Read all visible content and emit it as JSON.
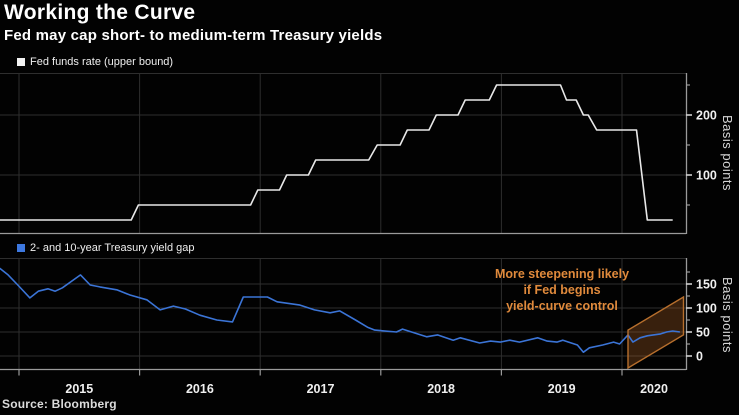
{
  "header": {
    "title": "Working the Curve",
    "subtitle": "Fed may cap short- to medium-term Treasury yields"
  },
  "source_label": "Source: Bloomberg",
  "colors": {
    "background": "#020202",
    "title_text": "#ffffff",
    "fed_line": "#e8e8e8",
    "gap_line": "#3b74d6",
    "legend_fed_swatch": "#f2f2f2",
    "legend_gap_swatch": "#3d78e0",
    "annotation_orange": "#e08a3c",
    "wedge_fill": "rgba(170,95,38,0.32)",
    "wedge_stroke": "#b76f2d",
    "grid": "#2e2e2e",
    "axis": "#9a9a9a",
    "tick_text": "#f0f0f0"
  },
  "chart_data": [
    {
      "type": "line",
      "line_style": "step",
      "title": "Fed funds rate (upper bound)",
      "ylabel": "Basis points",
      "x_unit": "year",
      "x_range": [
        2014.84,
        2020.53
      ],
      "x_ticks": [
        2015,
        2016,
        2017,
        2018,
        2019,
        2020
      ],
      "ylim": [
        0,
        270
      ],
      "yticks_labeled": [
        100,
        200
      ],
      "yticks_minor": [
        50,
        150,
        250
      ],
      "grid": "on",
      "legend_position": "top-left",
      "points": [
        [
          2014.84,
          25
        ],
        [
          2015.93,
          25
        ],
        [
          2015.99,
          50
        ],
        [
          2016.92,
          50
        ],
        [
          2016.98,
          75
        ],
        [
          2017.16,
          75
        ],
        [
          2017.22,
          100
        ],
        [
          2017.4,
          100
        ],
        [
          2017.46,
          125
        ],
        [
          2017.9,
          125
        ],
        [
          2017.97,
          150
        ],
        [
          2018.16,
          150
        ],
        [
          2018.22,
          175
        ],
        [
          2018.4,
          175
        ],
        [
          2018.46,
          200
        ],
        [
          2018.64,
          200
        ],
        [
          2018.7,
          225
        ],
        [
          2018.9,
          225
        ],
        [
          2018.96,
          250
        ],
        [
          2019.49,
          250
        ],
        [
          2019.54,
          225
        ],
        [
          2019.62,
          225
        ],
        [
          2019.68,
          200
        ],
        [
          2019.72,
          200
        ],
        [
          2019.79,
          175
        ],
        [
          2020.12,
          175
        ],
        [
          2020.21,
          25
        ],
        [
          2020.42,
          25
        ]
      ]
    },
    {
      "type": "line",
      "title": "2- and 10-year Treasury yield gap",
      "ylabel": "Basis points",
      "x_unit": "year",
      "x_range": [
        2014.84,
        2020.53
      ],
      "x_ticks": [
        2015,
        2016,
        2017,
        2018,
        2019,
        2020
      ],
      "ylim": [
        -30,
        205
      ],
      "yticks_labeled": [
        0,
        50,
        100,
        150
      ],
      "yticks_minor": [
        25,
        75,
        125,
        175
      ],
      "grid": "on",
      "legend_position": "top-left",
      "points": [
        [
          2014.84,
          183
        ],
        [
          2014.91,
          169
        ],
        [
          2014.99,
          148
        ],
        [
          2015.09,
          121
        ],
        [
          2015.16,
          135
        ],
        [
          2015.24,
          140
        ],
        [
          2015.3,
          135
        ],
        [
          2015.36,
          142
        ],
        [
          2015.51,
          169
        ],
        [
          2015.59,
          148
        ],
        [
          2015.67,
          144
        ],
        [
          2015.81,
          138
        ],
        [
          2015.92,
          127
        ],
        [
          2016.06,
          117
        ],
        [
          2016.17,
          96
        ],
        [
          2016.28,
          104
        ],
        [
          2016.38,
          98
        ],
        [
          2016.5,
          85
        ],
        [
          2016.64,
          75
        ],
        [
          2016.77,
          71
        ],
        [
          2016.86,
          123
        ],
        [
          2017.06,
          123
        ],
        [
          2017.14,
          113
        ],
        [
          2017.33,
          106
        ],
        [
          2017.45,
          96
        ],
        [
          2017.58,
          90
        ],
        [
          2017.66,
          94
        ],
        [
          2017.79,
          75
        ],
        [
          2017.89,
          60
        ],
        [
          2017.95,
          54
        ],
        [
          2018.13,
          50
        ],
        [
          2018.18,
          56
        ],
        [
          2018.38,
          40
        ],
        [
          2018.47,
          44
        ],
        [
          2018.6,
          33
        ],
        [
          2018.66,
          38
        ],
        [
          2018.82,
          27
        ],
        [
          2018.91,
          31
        ],
        [
          2018.99,
          29
        ],
        [
          2019.07,
          33
        ],
        [
          2019.15,
          29
        ],
        [
          2019.3,
          38
        ],
        [
          2019.38,
          31
        ],
        [
          2019.46,
          29
        ],
        [
          2019.51,
          33
        ],
        [
          2019.63,
          23
        ],
        [
          2019.68,
          8
        ],
        [
          2019.73,
          17
        ],
        [
          2019.84,
          23
        ],
        [
          2019.93,
          29
        ],
        [
          2019.98,
          25
        ],
        [
          2020.05,
          44
        ],
        [
          2020.09,
          29
        ],
        [
          2020.15,
          38
        ],
        [
          2020.21,
          42
        ],
        [
          2020.26,
          44
        ],
        [
          2020.32,
          46
        ],
        [
          2020.37,
          50
        ],
        [
          2020.42,
          52
        ],
        [
          2020.48,
          50
        ]
      ],
      "annotation": {
        "text": [
          "More steepening likely",
          "if Fed begins",
          "yield-curve control"
        ]
      },
      "projection_wedge": {
        "polygon": [
          [
            2020.05,
            54
          ],
          [
            2020.51,
            123
          ],
          [
            2020.51,
            44
          ],
          [
            2020.05,
            -25
          ]
        ]
      }
    }
  ]
}
